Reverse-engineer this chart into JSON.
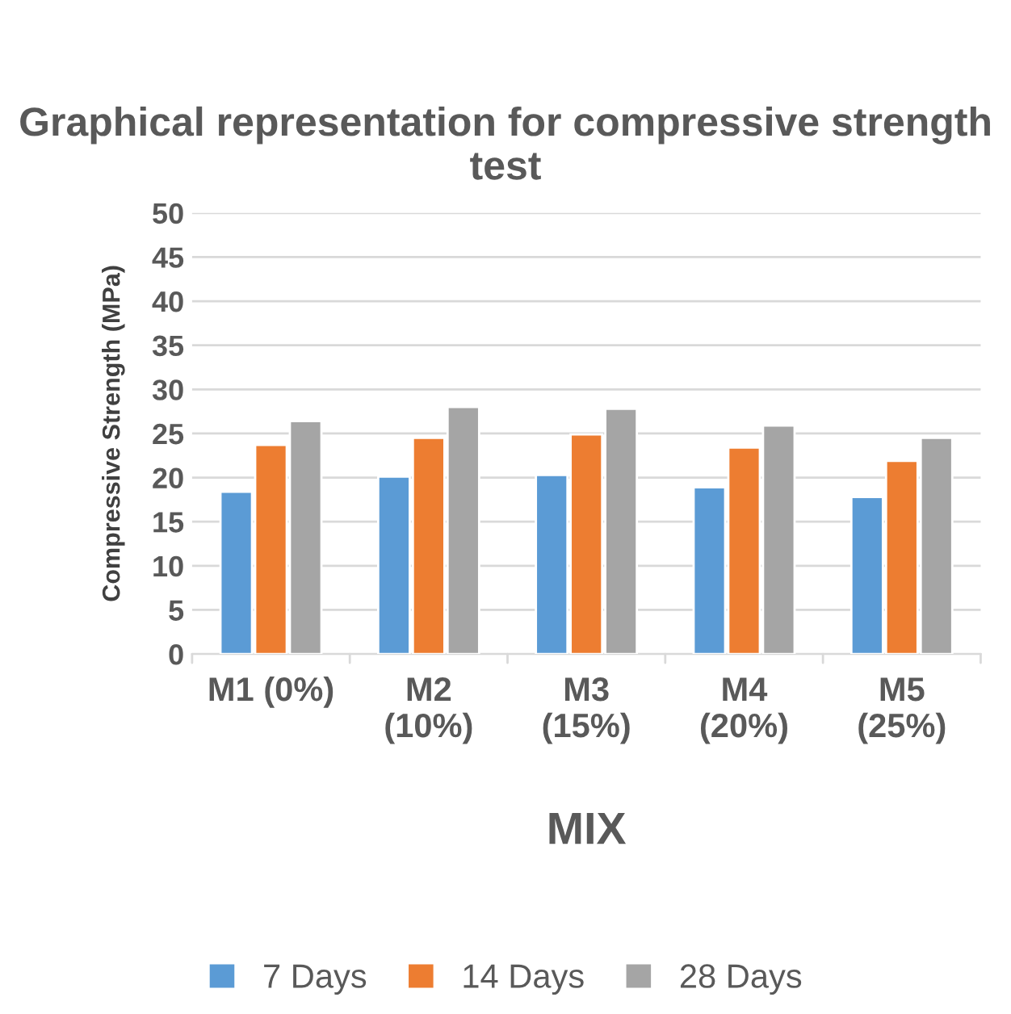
{
  "chart_data": {
    "type": "bar",
    "title": "Graphical representation for compressive strength test",
    "xlabel": "MIX",
    "ylabel": "Compressive Strength (MPa)",
    "categories": [
      "M1 (0%)",
      "M2 (10%)",
      "M3 (15%)",
      "M4 (20%)",
      "M5 (25%)"
    ],
    "series": [
      {
        "name": "7 Days",
        "color": "#5b9bd5",
        "values": [
          18.4,
          20.1,
          20.3,
          18.9,
          17.8
        ]
      },
      {
        "name": "14 Days",
        "color": "#ed7d31",
        "values": [
          23.7,
          24.5,
          24.9,
          23.4,
          21.9
        ]
      },
      {
        "name": "28 Days",
        "color": "#a5a5a5",
        "values": [
          26.4,
          28.0,
          27.8,
          25.9,
          24.5
        ]
      }
    ],
    "ylim": [
      0,
      50
    ],
    "yticks": [
      0,
      5,
      10,
      15,
      20,
      25,
      30,
      35,
      40,
      45,
      50
    ],
    "grid": "y",
    "legend": "bottom"
  }
}
